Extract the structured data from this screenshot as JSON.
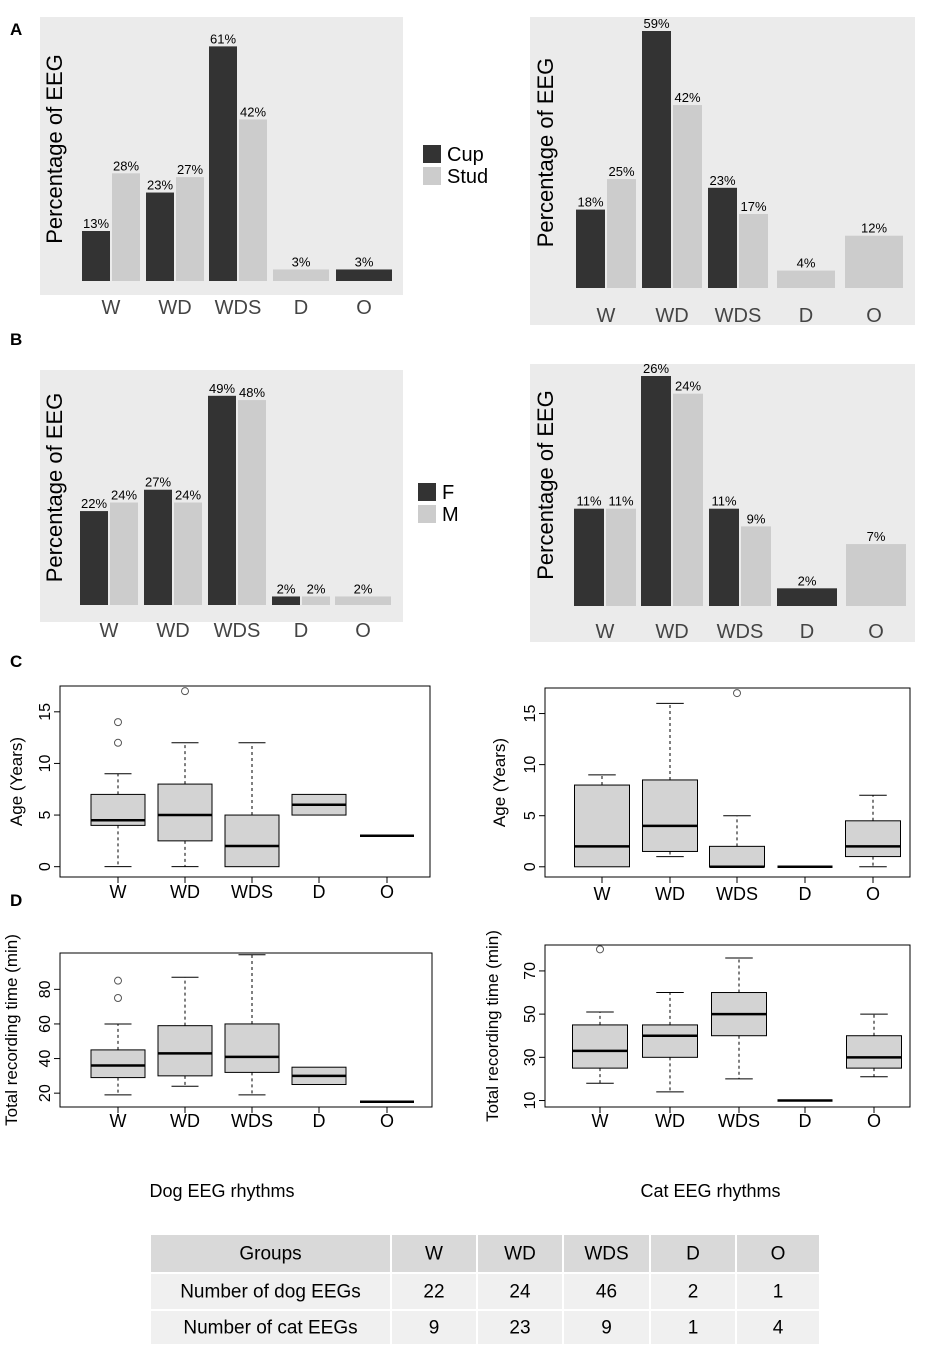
{
  "panel_letters": [
    "A",
    "B",
    "C",
    "D"
  ],
  "colors": {
    "dark": "#333333",
    "light": "#cccccc",
    "panel_bg": "#ebebeb",
    "box_fill": "#d3d3d3",
    "header_bg": "#d9d9d9",
    "row_bg": "#f0f0f0"
  },
  "chart_data": [
    {
      "id": "A-dog",
      "type": "bar",
      "categories": [
        "W",
        "WD",
        "WDS",
        "D",
        "O"
      ],
      "series": [
        {
          "name": "Cup",
          "values": [
            13,
            23,
            61,
            null,
            3
          ]
        },
        {
          "name": "Stud",
          "values": [
            28,
            27,
            42,
            3,
            null
          ]
        }
      ],
      "labels": [
        [
          "13%",
          "23%",
          "61%",
          null,
          "3%"
        ],
        [
          "28%",
          "27%",
          "42%",
          "3%",
          null
        ]
      ],
      "ylabel": "Percentage of EEG",
      "ylim": [
        0,
        65
      ],
      "legend": {
        "title": "",
        "entries": [
          "Cup",
          "Stud"
        ],
        "placement": "right"
      }
    },
    {
      "id": "A-cat",
      "type": "bar",
      "categories": [
        "W",
        "WD",
        "WDS",
        "D",
        "O"
      ],
      "series": [
        {
          "name": "Cup",
          "values": [
            18,
            59,
            23,
            null,
            null
          ]
        },
        {
          "name": "Stud",
          "values": [
            25,
            42,
            17,
            4,
            12
          ]
        }
      ],
      "labels": [
        [
          "18%",
          "59%",
          "23%",
          null,
          null
        ],
        [
          "25%",
          "42%",
          "17%",
          "4%",
          "12%"
        ]
      ],
      "ylabel": "Percentage of EEG",
      "ylim": [
        0,
        59
      ]
    },
    {
      "id": "B-dog",
      "type": "bar",
      "categories": [
        "W",
        "WD",
        "WDS",
        "D",
        "O"
      ],
      "series": [
        {
          "name": "F",
          "values": [
            22,
            27,
            49,
            2,
            null
          ]
        },
        {
          "name": "M",
          "values": [
            24,
            24,
            48,
            2,
            2
          ]
        }
      ],
      "labels": [
        [
          "22%",
          "27%",
          "49%",
          "2%",
          null
        ],
        [
          "24%",
          "24%",
          "48%",
          "2%",
          "2%"
        ]
      ],
      "ylabel": "Percentage of  EEG",
      "ylim": [
        0,
        52
      ],
      "legend": {
        "title": "",
        "entries": [
          "F",
          "M"
        ],
        "placement": "right"
      }
    },
    {
      "id": "B-cat",
      "type": "bar",
      "categories": [
        "W",
        "WD",
        "WDS",
        "D",
        "O"
      ],
      "series": [
        {
          "name": "F",
          "values": [
            11,
            26,
            11,
            2,
            null
          ]
        },
        {
          "name": "M",
          "values": [
            11,
            24,
            9,
            null,
            7
          ]
        }
      ],
      "labels": [
        [
          "11%",
          "26%",
          "11%",
          "2%",
          null
        ],
        [
          "11%",
          "24%",
          "9%",
          null,
          "7%"
        ]
      ],
      "ylabel": "Percentage of EEG",
      "ylim": [
        0,
        26
      ]
    },
    {
      "id": "C-dog",
      "type": "box",
      "categories": [
        "W",
        "WD",
        "WDS",
        "D",
        "O"
      ],
      "boxes": [
        {
          "min": 0,
          "q1": 4,
          "median": 4.5,
          "q3": 7,
          "max": 9,
          "outliers": [
            12,
            14
          ]
        },
        {
          "min": 0,
          "q1": 2.5,
          "median": 5,
          "q3": 8,
          "max": 12,
          "outliers": [
            17
          ]
        },
        {
          "min": 0,
          "q1": 0,
          "median": 2,
          "q3": 5,
          "max": 12,
          "outliers": []
        },
        {
          "min": 5,
          "q1": 5,
          "median": 6,
          "q3": 7,
          "max": 7,
          "outliers": []
        },
        {
          "min": 3,
          "q1": 3,
          "median": 3,
          "q3": 3,
          "max": 3,
          "outliers": []
        }
      ],
      "ylabel": "Age (Years)",
      "ylim": [
        -1,
        17.5
      ],
      "yticks": [
        0,
        5,
        10,
        15
      ]
    },
    {
      "id": "C-cat",
      "type": "box",
      "categories": [
        "W",
        "WD",
        "WDS",
        "D",
        "O"
      ],
      "boxes": [
        {
          "min": 0,
          "q1": 0,
          "median": 2,
          "q3": 8,
          "max": 9,
          "outliers": []
        },
        {
          "min": 1,
          "q1": 1.5,
          "median": 4,
          "q3": 8.5,
          "max": 16,
          "outliers": []
        },
        {
          "min": 0,
          "q1": 0,
          "median": 0,
          "q3": 2,
          "max": 5,
          "outliers": [
            17
          ]
        },
        {
          "min": 0,
          "q1": 0,
          "median": 0,
          "q3": 0,
          "max": 0,
          "outliers": []
        },
        {
          "min": 0,
          "q1": 1,
          "median": 2,
          "q3": 4.5,
          "max": 7,
          "outliers": []
        }
      ],
      "ylabel": "Age (Years)",
      "ylim": [
        -1,
        17.5
      ],
      "yticks": [
        0,
        5,
        10,
        15
      ]
    },
    {
      "id": "D-dog",
      "type": "box",
      "categories": [
        "W",
        "WD",
        "WDS",
        "D",
        "O"
      ],
      "boxes": [
        {
          "min": 19,
          "q1": 29,
          "median": 36,
          "q3": 45,
          "max": 60,
          "outliers": [
            75,
            85
          ]
        },
        {
          "min": 24,
          "q1": 30,
          "median": 43,
          "q3": 59,
          "max": 87,
          "outliers": []
        },
        {
          "min": 19,
          "q1": 32,
          "median": 41,
          "q3": 60,
          "max": 100,
          "outliers": []
        },
        {
          "min": 25,
          "q1": 25,
          "median": 30,
          "q3": 35,
          "max": 35,
          "outliers": []
        },
        {
          "min": 15,
          "q1": 15,
          "median": 15,
          "q3": 15,
          "max": 15,
          "outliers": []
        }
      ],
      "ylabel": "Total recording time (min)",
      "xlabel": "Dog EEG rhythms",
      "ylim": [
        12,
        101
      ],
      "yticks": [
        20,
        40,
        60,
        80
      ]
    },
    {
      "id": "D-cat",
      "type": "box",
      "categories": [
        "W",
        "WD",
        "WDS",
        "D",
        "O"
      ],
      "boxes": [
        {
          "min": 18,
          "q1": 25,
          "median": 33,
          "q3": 45,
          "max": 51,
          "outliers": [
            80
          ]
        },
        {
          "min": 14,
          "q1": 30,
          "median": 40,
          "q3": 45,
          "max": 60,
          "outliers": []
        },
        {
          "min": 20,
          "q1": 40,
          "median": 50,
          "q3": 60,
          "max": 76,
          "outliers": []
        },
        {
          "min": 10,
          "q1": 10,
          "median": 10,
          "q3": 10,
          "max": 10,
          "outliers": []
        },
        {
          "min": 21,
          "q1": 25,
          "median": 30,
          "q3": 40,
          "max": 50,
          "outliers": []
        }
      ],
      "ylabel": "Total recording time (min)",
      "xlabel": "Cat EEG rhythms",
      "ylim": [
        7,
        82
      ],
      "yticks": [
        10,
        30,
        50,
        70
      ]
    }
  ],
  "table": {
    "headers": [
      "Groups",
      "W",
      "WD",
      "WDS",
      "D",
      "O"
    ],
    "rows": [
      [
        "Number of dog EEGs",
        "22",
        "24",
        "46",
        "2",
        "1"
      ],
      [
        "Number of cat EEGs",
        "9",
        "23",
        "9",
        "1",
        "4"
      ]
    ]
  }
}
